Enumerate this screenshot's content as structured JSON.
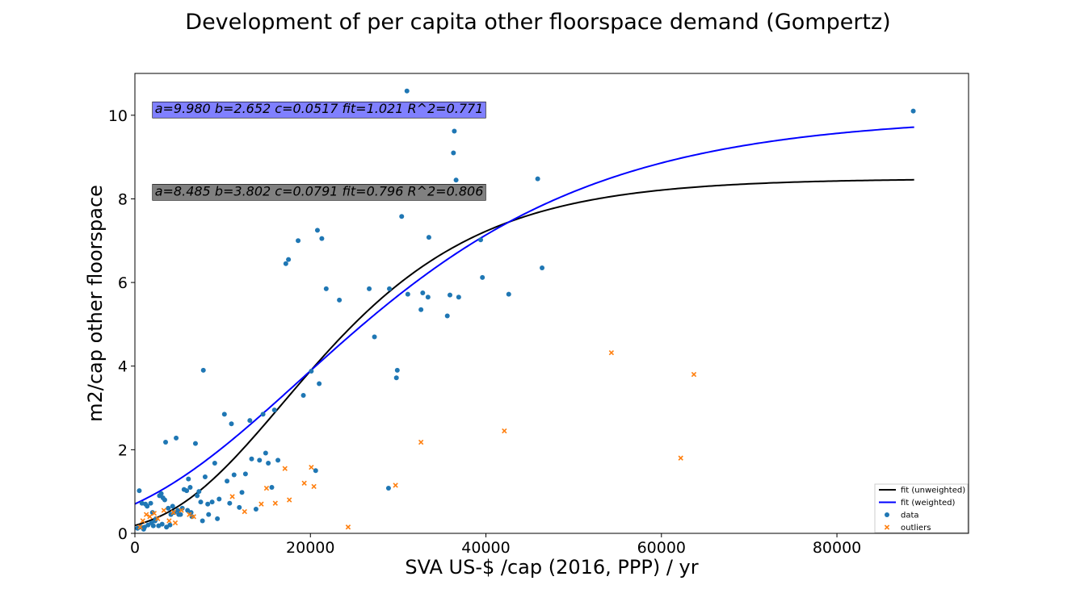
{
  "chart_data": {
    "type": "scatter",
    "title": "Development of per capita other floorspace demand (Gompertz)",
    "xlabel": "SVA US-$ /cap (2016, PPP) / yr",
    "ylabel": "m2/cap other floorspace",
    "xlim": [
      0,
      95000
    ],
    "ylim": [
      0,
      11
    ],
    "x_ticks": [
      0,
      20000,
      40000,
      60000,
      80000
    ],
    "y_ticks": [
      0,
      2,
      4,
      6,
      8,
      10
    ],
    "grid": false,
    "legend_position": "bottom-right",
    "annotations": [
      {
        "text": "a=9.980 b=2.652 c=0.0517 fit=1.021 R^2=0.771",
        "x": 2000,
        "y": 10.05,
        "bg": "#8080ff"
      },
      {
        "text": "a=8.485 b=3.802 c=0.0791 fit=0.796 R^2=0.806",
        "x": 2000,
        "y": 8.08,
        "bg": "#808080"
      }
    ],
    "series": [
      {
        "name": "fit (unweighted)",
        "kind": "line",
        "color": "#000000",
        "model": "gompertz",
        "a": 8.485,
        "b": 3.802,
        "c": 0.0791,
        "x_range": [
          0,
          88800
        ]
      },
      {
        "name": "fit (weighted)",
        "kind": "line",
        "color": "#0000ff",
        "model": "gompertz",
        "a": 9.98,
        "b": 2.652,
        "c": 0.0517,
        "x_range": [
          0,
          88800
        ]
      },
      {
        "name": "data",
        "kind": "scatter",
        "marker": "circle",
        "color": "#1f77b4",
        "points": [
          [
            500,
            1.02
          ],
          [
            800,
            0.72
          ],
          [
            1200,
            0.7
          ],
          [
            1400,
            0.65
          ],
          [
            1800,
            0.72
          ],
          [
            2000,
            0.5
          ],
          [
            2400,
            0.35
          ],
          [
            2800,
            0.9
          ],
          [
            3000,
            0.95
          ],
          [
            3200,
            0.85
          ],
          [
            3400,
            0.8
          ],
          [
            3500,
            2.18
          ],
          [
            3800,
            0.6
          ],
          [
            4100,
            0.45
          ],
          [
            4300,
            0.65
          ],
          [
            4700,
            2.28
          ],
          [
            4900,
            0.55
          ],
          [
            5200,
            0.45
          ],
          [
            5600,
            1.05
          ],
          [
            5900,
            1.02
          ],
          [
            6100,
            1.3
          ],
          [
            6300,
            1.1
          ],
          [
            6500,
            0.4
          ],
          [
            6900,
            2.15
          ],
          [
            7300,
            1.0
          ],
          [
            7500,
            0.75
          ],
          [
            7800,
            3.9
          ],
          [
            8000,
            1.35
          ],
          [
            8300,
            0.7
          ],
          [
            8800,
            0.75
          ],
          [
            9100,
            1.68
          ],
          [
            9400,
            0.35
          ],
          [
            9600,
            0.82
          ],
          [
            10200,
            2.85
          ],
          [
            10500,
            1.25
          ],
          [
            10800,
            0.72
          ],
          [
            11000,
            2.62
          ],
          [
            11300,
            1.4
          ],
          [
            11900,
            0.62
          ],
          [
            12200,
            0.98
          ],
          [
            12600,
            1.42
          ],
          [
            13100,
            2.7
          ],
          [
            13300,
            1.78
          ],
          [
            13800,
            0.58
          ],
          [
            14200,
            1.75
          ],
          [
            14600,
            2.85
          ],
          [
            14900,
            1.92
          ],
          [
            15200,
            1.68
          ],
          [
            15600,
            1.1
          ],
          [
            15900,
            2.95
          ],
          [
            16300,
            1.75
          ],
          [
            17200,
            6.45
          ],
          [
            17500,
            6.55
          ],
          [
            18600,
            7.0
          ],
          [
            19200,
            3.3
          ],
          [
            20100,
            3.88
          ],
          [
            20600,
            1.5
          ],
          [
            20800,
            7.25
          ],
          [
            21000,
            3.58
          ],
          [
            21300,
            7.05
          ],
          [
            21800,
            5.85
          ],
          [
            23300,
            5.58
          ],
          [
            26700,
            5.85
          ],
          [
            27300,
            4.7
          ],
          [
            28900,
            1.08
          ],
          [
            29000,
            5.85
          ],
          [
            29800,
            3.72
          ],
          [
            29900,
            3.9
          ],
          [
            30400,
            7.58
          ],
          [
            31000,
            10.58
          ],
          [
            31100,
            5.72
          ],
          [
            32600,
            5.35
          ],
          [
            32800,
            5.75
          ],
          [
            33400,
            5.65
          ],
          [
            33500,
            7.08
          ],
          [
            35600,
            5.2
          ],
          [
            35900,
            5.7
          ],
          [
            36300,
            9.1
          ],
          [
            36400,
            9.62
          ],
          [
            36600,
            8.45
          ],
          [
            36900,
            5.65
          ],
          [
            39400,
            7.02
          ],
          [
            39600,
            6.12
          ],
          [
            42600,
            5.72
          ],
          [
            45900,
            8.48
          ],
          [
            46400,
            6.35
          ],
          [
            88700,
            10.1
          ],
          [
            300,
            0.12
          ],
          [
            700,
            0.15
          ],
          [
            1000,
            0.1
          ],
          [
            1500,
            0.2
          ],
          [
            1900,
            0.25
          ],
          [
            2300,
            0.3
          ],
          [
            2700,
            0.18
          ],
          [
            3100,
            0.22
          ],
          [
            3600,
            0.15
          ],
          [
            4000,
            0.2
          ],
          [
            4500,
            0.5
          ],
          [
            5000,
            0.45
          ],
          [
            5400,
            0.6
          ],
          [
            6000,
            0.55
          ],
          [
            6400,
            0.5
          ],
          [
            7100,
            0.9
          ],
          [
            7700,
            0.3
          ],
          [
            8400,
            0.45
          ],
          [
            1100,
            0.15
          ],
          [
            2100,
            0.18
          ]
        ]
      },
      {
        "name": "outliers",
        "kind": "scatter",
        "marker": "x",
        "color": "#ff7f0e",
        "points": [
          [
            600,
            0.15
          ],
          [
            900,
            0.3
          ],
          [
            1300,
            0.45
          ],
          [
            1700,
            0.4
          ],
          [
            2200,
            0.48
          ],
          [
            2600,
            0.35
          ],
          [
            3300,
            0.55
          ],
          [
            3900,
            0.3
          ],
          [
            4400,
            0.5
          ],
          [
            4600,
            0.25
          ],
          [
            5300,
            0.55
          ],
          [
            6200,
            0.45
          ],
          [
            6700,
            0.4
          ],
          [
            11100,
            0.88
          ],
          [
            12500,
            0.52
          ],
          [
            14400,
            0.7
          ],
          [
            15000,
            1.08
          ],
          [
            16000,
            0.72
          ],
          [
            17100,
            1.55
          ],
          [
            17600,
            0.8
          ],
          [
            19300,
            1.2
          ],
          [
            20100,
            1.58
          ],
          [
            20400,
            1.12
          ],
          [
            24300,
            0.15
          ],
          [
            29700,
            1.15
          ],
          [
            32600,
            2.18
          ],
          [
            42100,
            2.45
          ],
          [
            54300,
            4.32
          ],
          [
            62200,
            1.8
          ],
          [
            63700,
            3.8
          ]
        ]
      }
    ]
  }
}
